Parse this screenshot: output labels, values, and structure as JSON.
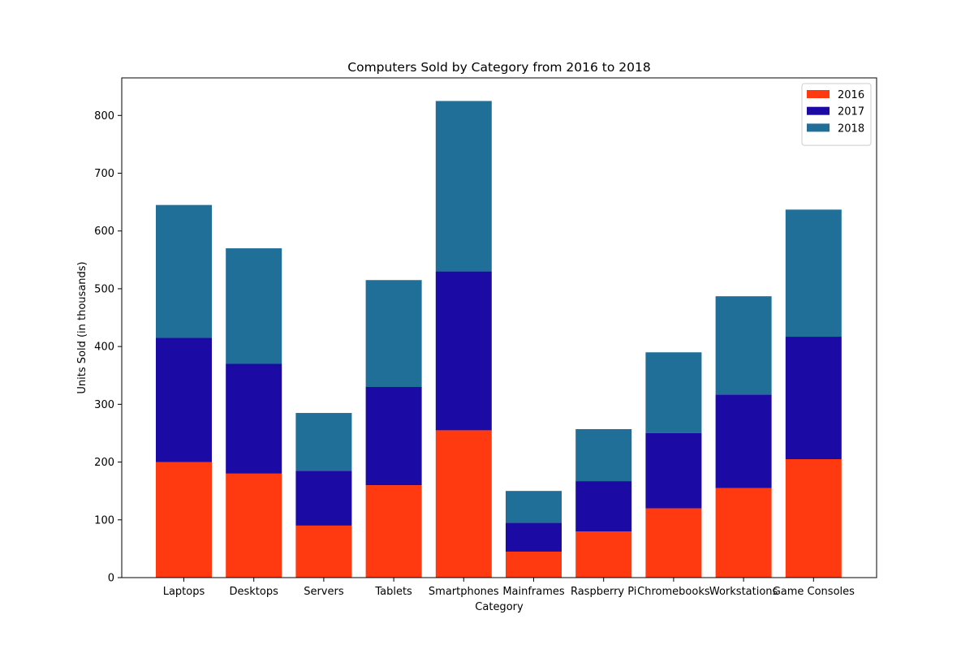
{
  "chart_data": {
    "type": "bar",
    "stacked": true,
    "title": "Computers Sold by Category from 2016 to 2018",
    "xlabel": "Category",
    "ylabel": "Units Sold (in thousands)",
    "categories": [
      "Laptops",
      "Desktops",
      "Servers",
      "Tablets",
      "Smartphones",
      "Mainframes",
      "Raspberry Pi",
      "Chromebooks",
      "Workstations",
      "Game Consoles"
    ],
    "series": [
      {
        "name": "2016",
        "color": "#ff3a10",
        "values": [
          200,
          180,
          90,
          160,
          255,
          45,
          80,
          120,
          155,
          205
        ]
      },
      {
        "name": "2017",
        "color": "#1c0aa5",
        "values": [
          215,
          190,
          95,
          170,
          275,
          50,
          87,
          130,
          162,
          212
        ]
      },
      {
        "name": "2018",
        "color": "#1f6f99",
        "values": [
          230,
          200,
          100,
          185,
          295,
          55,
          90,
          140,
          170,
          220
        ]
      }
    ],
    "ylim": [
      0,
      865
    ],
    "yticks": [
      0,
      100,
      200,
      300,
      400,
      500,
      600,
      700,
      800
    ],
    "legend_position": "top-right",
    "grid": false
  }
}
